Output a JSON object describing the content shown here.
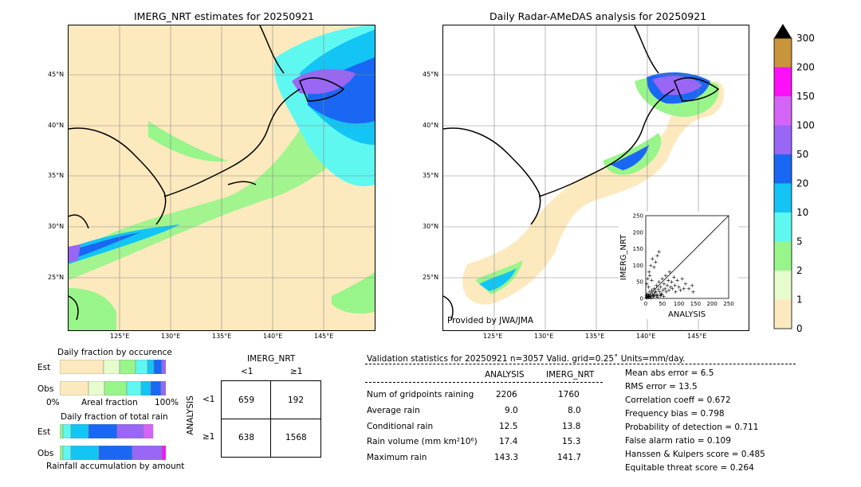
{
  "left_map": {
    "title": "IMERG_NRT estimates for 20250921",
    "lat_labels": [
      "45°N",
      "40°N",
      "35°N",
      "30°N",
      "25°N"
    ],
    "lon_labels": [
      "125°E",
      "130°E",
      "135°E",
      "140°E",
      "145°E"
    ]
  },
  "right_map": {
    "title": "Daily Radar-AMeDAS analysis for 20250921",
    "lat_labels": [
      "45°N",
      "40°N",
      "35°N",
      "30°N",
      "25°N"
    ],
    "lon_labels": [
      "125°E",
      "130°E",
      "135°E",
      "140°E",
      "145°E"
    ],
    "credit": "Provided by JWA/JMA"
  },
  "colorbar": {
    "levels": [
      "0",
      "1",
      "2",
      "5",
      "10",
      "20",
      "50",
      "100",
      "150",
      "200",
      "300"
    ],
    "colors": [
      "#fde9be",
      "#e6fccd",
      "#98f58a",
      "#5ef8f0",
      "#12c5f5",
      "#1a67f3",
      "#9966f5",
      "#d464f5",
      "#ff10f8",
      "#c8943c",
      "#000000"
    ]
  },
  "scatter": {
    "xlabel": "ANALYSIS",
    "ylabel": "IMERG_NRT",
    "ticks": [
      "0",
      "50",
      "100",
      "150",
      "200",
      "250"
    ]
  },
  "occurrence": {
    "title": "Daily fraction by occurence",
    "rows": [
      "Est",
      "Obs"
    ],
    "axis_left": "0%",
    "axis_mid": "Areal fraction",
    "axis_right": "100%"
  },
  "total_rain": {
    "title": "Daily fraction of total rain",
    "rows": [
      "Est",
      "Obs"
    ],
    "axis_label": "Rainfall accumulation by amount"
  },
  "contingency": {
    "col_header": "IMERG_NRT",
    "col_labels": [
      "<1",
      "≥1"
    ],
    "row_header": "ANALYSIS",
    "row_labels": [
      "<1",
      "≥1"
    ],
    "cells": [
      [
        "659",
        "192"
      ],
      [
        "638",
        "1568"
      ]
    ]
  },
  "validation": {
    "header": "Validation statistics for 20250921  n=3057 Valid. grid=0.25˚ Units=mm/day.",
    "col_analysis": "ANALYSIS",
    "col_imerg": "IMERG_NRT",
    "rows": [
      {
        "label": "Num of gridpoints raining",
        "analysis": "2206",
        "imerg": "1760"
      },
      {
        "label": "Average rain",
        "analysis": "9.0",
        "imerg": "8.0"
      },
      {
        "label": "Conditional rain",
        "analysis": "12.5",
        "imerg": "13.8"
      },
      {
        "label": "Rain volume (mm km²10⁶)",
        "analysis": "17.4",
        "imerg": "15.3"
      },
      {
        "label": "Maximum rain",
        "analysis": "143.3",
        "imerg": "141.7"
      }
    ],
    "scores": [
      "Mean abs error =    6.5",
      "RMS error =   13.5",
      "Correlation coeff =  0.672",
      "Frequency bias =  0.798",
      "Probability of detection =  0.711",
      "False alarm ratio =  0.109",
      "Hanssen & Kuipers score =  0.485",
      "Equitable threat score =  0.264"
    ]
  },
  "chart_data": {
    "type": "scatter",
    "title": "",
    "xlabel": "ANALYSIS",
    "ylabel": "IMERG_NRT",
    "xlim": [
      0,
      250
    ],
    "ylim": [
      0,
      250
    ],
    "points": [
      [
        5,
        3
      ],
      [
        8,
        12
      ],
      [
        10,
        6
      ],
      [
        12,
        20
      ],
      [
        15,
        10
      ],
      [
        18,
        25
      ],
      [
        20,
        15
      ],
      [
        22,
        8
      ],
      [
        25,
        30
      ],
      [
        28,
        18
      ],
      [
        30,
        22
      ],
      [
        32,
        40
      ],
      [
        35,
        12
      ],
      [
        38,
        28
      ],
      [
        40,
        50
      ],
      [
        42,
        20
      ],
      [
        45,
        35
      ],
      [
        48,
        15
      ],
      [
        50,
        60
      ],
      [
        52,
        25
      ],
      [
        55,
        45
      ],
      [
        58,
        30
      ],
      [
        60,
        70
      ],
      [
        62,
        20
      ],
      [
        65,
        40
      ],
      [
        68,
        55
      ],
      [
        70,
        25
      ],
      [
        72,
        80
      ],
      [
        75,
        35
      ],
      [
        78,
        50
      ],
      [
        80,
        30
      ],
      [
        85,
        65
      ],
      [
        88,
        40
      ],
      [
        90,
        20
      ],
      [
        95,
        55
      ],
      [
        100,
        35
      ],
      [
        105,
        25
      ],
      [
        110,
        60
      ],
      [
        115,
        30
      ],
      [
        120,
        45
      ],
      [
        130,
        30
      ],
      [
        140,
        40
      ],
      [
        143,
        20
      ],
      [
        3,
        45
      ],
      [
        6,
        60
      ],
      [
        10,
        80
      ],
      [
        15,
        100
      ],
      [
        20,
        120
      ],
      [
        25,
        95
      ],
      [
        30,
        110
      ],
      [
        35,
        130
      ],
      [
        40,
        142
      ],
      [
        12,
        70
      ],
      [
        18,
        55
      ],
      [
        8,
        35
      ],
      [
        4,
        15
      ],
      [
        2,
        8
      ],
      [
        1,
        2
      ],
      [
        3,
        5
      ],
      [
        6,
        9
      ],
      [
        9,
        4
      ],
      [
        14,
        7
      ],
      [
        16,
        3
      ],
      [
        24,
        6
      ],
      [
        26,
        11
      ],
      [
        33,
        9
      ],
      [
        36,
        5
      ],
      [
        44,
        8
      ],
      [
        46,
        12
      ],
      [
        54,
        7
      ]
    ]
  }
}
